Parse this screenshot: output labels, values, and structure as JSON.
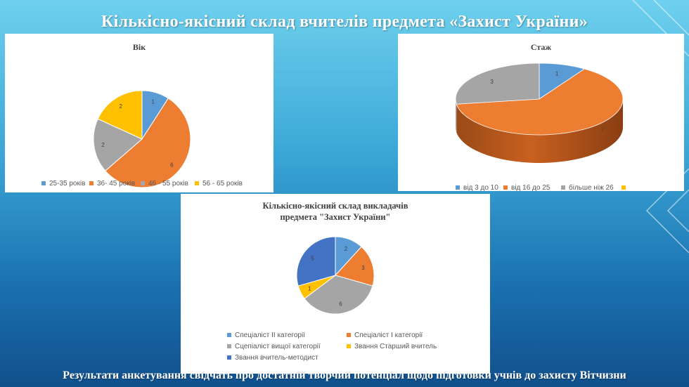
{
  "slide": {
    "title": "Кількісно-якісний  склад вчителів предмета «Захист України»",
    "footer": "Результати  анкетування свідчать про достатній творчий потенціал щодо підготовки учнів до захисту Вітчизни"
  },
  "colors": {
    "blue": "#5b9bd5",
    "orange": "#ed7d31",
    "gray": "#a5a5a5",
    "yellow": "#ffc000",
    "darkblue": "#4472c4"
  },
  "chart_data": [
    {
      "type": "pie",
      "title": "Вік",
      "categories": [
        "25-35 років",
        "36- 45 років",
        "46 - 55 років",
        "56 - 65 років"
      ],
      "values": [
        1,
        6,
        2,
        2
      ],
      "colors": [
        "#5b9bd5",
        "#ed7d31",
        "#a5a5a5",
        "#ffc000"
      ],
      "legend_position": "bottom"
    },
    {
      "type": "pie",
      "title": "Стаж",
      "style": "3d",
      "categories": [
        "від 3 до 10",
        "від 16 до 25",
        "більше ніж 26",
        ""
      ],
      "values": [
        1,
        7,
        3,
        null
      ],
      "colors": [
        "#5b9bd5",
        "#ed7d31",
        "#a5a5a5",
        "#ffc000"
      ],
      "legend_position": "bottom"
    },
    {
      "type": "pie",
      "title": "Кількісно-якісний склад викладачів предмета \"Захист України\"",
      "categories": [
        "Спеціаліст ІІ категорії",
        "Спеціаліст І категорії",
        "Сцепіаліст вищої категорії",
        "Звання Старший вчитель",
        "Звання вчитель-методист"
      ],
      "values": [
        2,
        3,
        6,
        1,
        5
      ],
      "colors": [
        "#5b9bd5",
        "#ed7d31",
        "#a5a5a5",
        "#ffc000",
        "#4472c4"
      ],
      "legend_position": "bottom"
    }
  ]
}
